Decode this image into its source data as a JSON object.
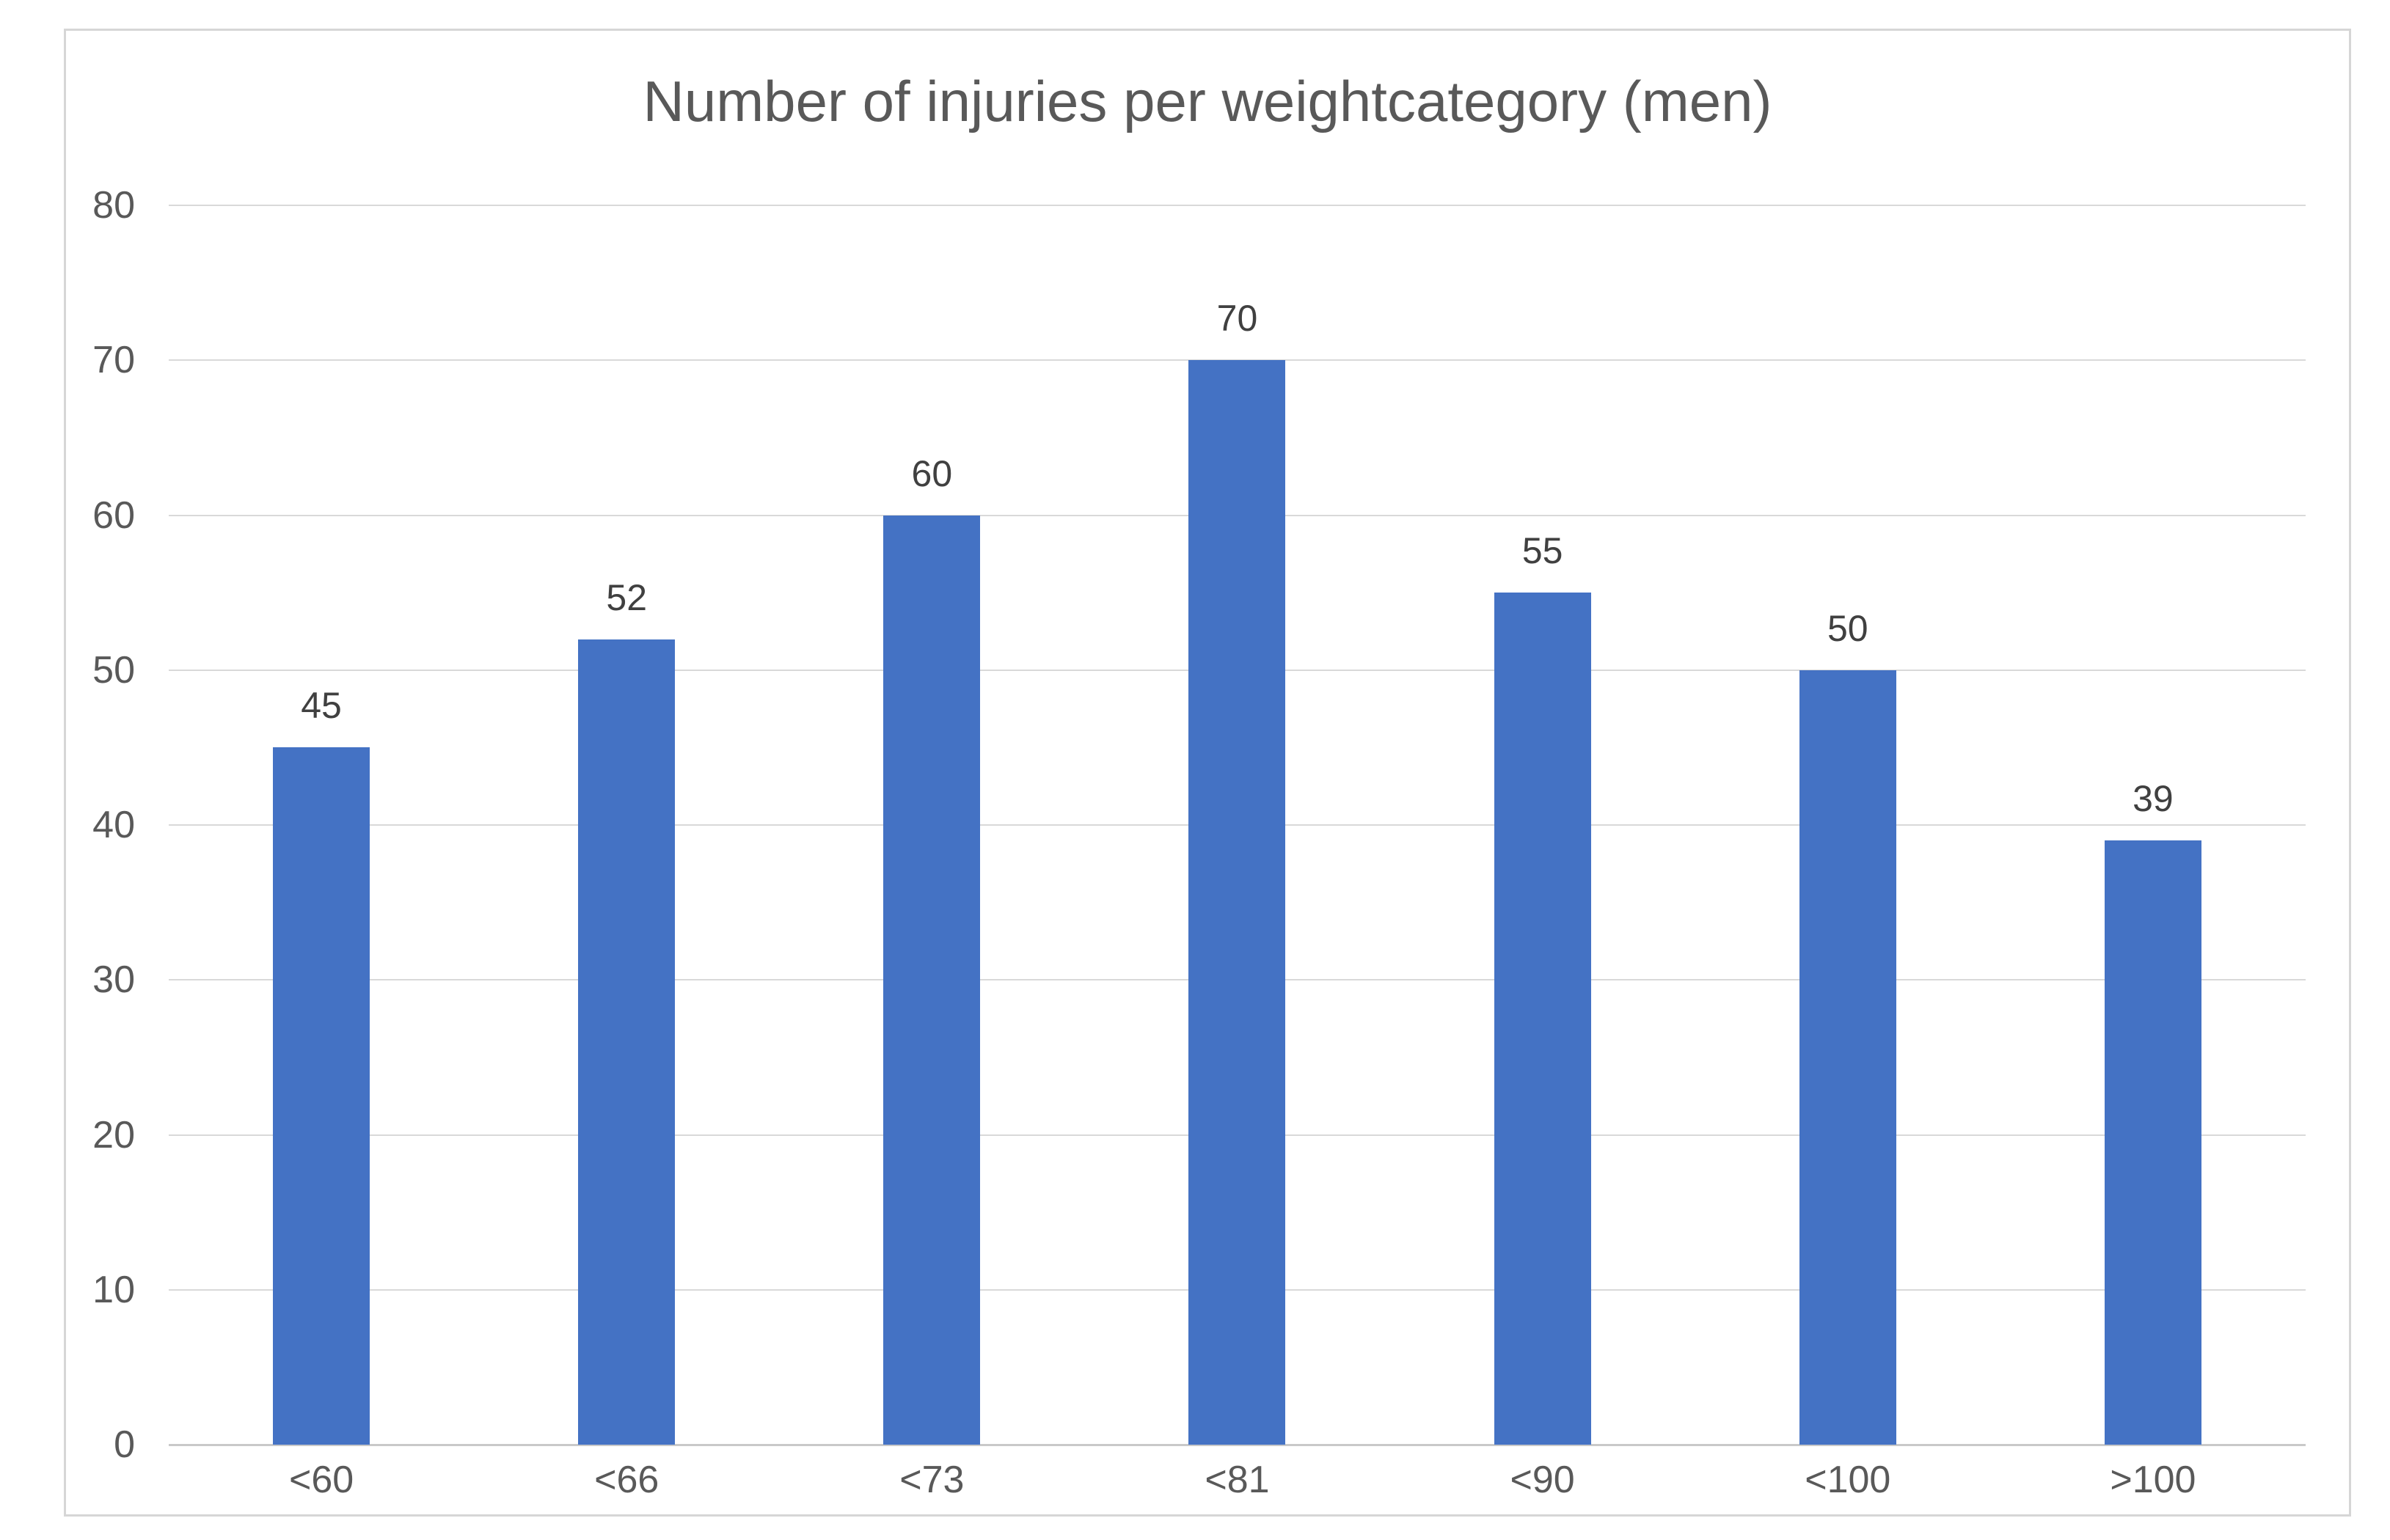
{
  "chart_data": {
    "type": "bar",
    "title": "Number of injuries per weightcategory (men)",
    "categories": [
      "<60",
      "<66",
      "<73",
      "<81",
      "<90",
      "<100",
      ">100"
    ],
    "values": [
      45,
      52,
      60,
      70,
      55,
      50,
      39
    ],
    "series_count": 1,
    "xlabel": "",
    "ylabel": "",
    "ylim": [
      0,
      80
    ],
    "yticks": [
      0,
      10,
      20,
      30,
      40,
      50,
      60,
      70,
      80
    ],
    "grid": true,
    "legend_position": "none",
    "data_labels": true
  },
  "colors": {
    "bar": "#4472c4",
    "gridline": "#d9d9d9",
    "axis_line": "#c9c9c9",
    "tick_text": "#595959",
    "title_text": "#595959",
    "data_label_text": "#404040",
    "frame_border": "#d6d6d6",
    "background": "#ffffff"
  }
}
